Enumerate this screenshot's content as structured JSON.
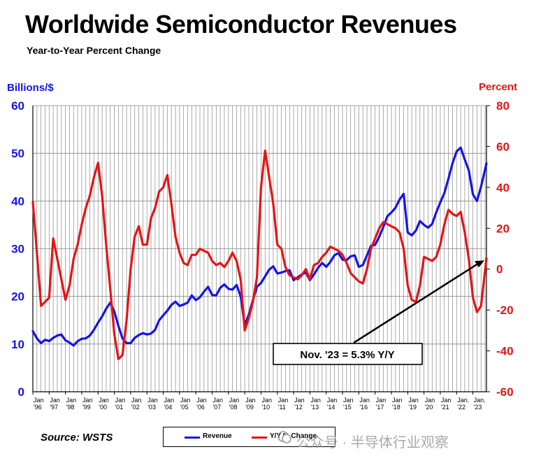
{
  "header": {
    "title": "Worldwide Semiconductor Revenues",
    "subtitle": "Year-to-Year Percent Change"
  },
  "axes": {
    "left_label": "Billions/$",
    "right_label": "Percent"
  },
  "footer": {
    "source": "Source: WSTS"
  },
  "legend": {
    "revenue": "Revenue",
    "yoy": "Y/Y % Change"
  },
  "annotation": {
    "text": "Nov. '23 = 5.3% Y/Y"
  },
  "watermark": {
    "text": "公众号 · 半导体行业观察"
  },
  "colors": {
    "revenue": "#1414e6",
    "yoy": "#e61414",
    "grid": "#888888"
  },
  "chart_data": {
    "type": "line",
    "title": "Worldwide Semiconductor Revenues",
    "subtitle": "Year-to-Year Percent Change",
    "x_start": "Jan '96",
    "x_end": "Nov '23",
    "x_tick_labels": [
      {
        "top": "Jan",
        "bottom": "'96"
      },
      {
        "top": "Jan",
        "bottom": "'97"
      },
      {
        "top": "Jan",
        "bottom": "'98"
      },
      {
        "top": "Jan",
        "bottom": "'99"
      },
      {
        "top": "Jan",
        "bottom": "'00"
      },
      {
        "top": "Jan",
        "bottom": "'01"
      },
      {
        "top": "Jan",
        "bottom": "'02"
      },
      {
        "top": "Jan",
        "bottom": "'03"
      },
      {
        "top": "Jan",
        "bottom": "'04"
      },
      {
        "top": "Jan",
        "bottom": "'05"
      },
      {
        "top": "Jan",
        "bottom": "'06"
      },
      {
        "top": "Jan",
        "bottom": "'07"
      },
      {
        "top": "Jan",
        "bottom": "'08"
      },
      {
        "top": "Jan",
        "bottom": "'09"
      },
      {
        "top": "Jan",
        "bottom": "'10"
      },
      {
        "top": "Jan",
        "bottom": "'11"
      },
      {
        "top": "Jan",
        "bottom": "'12"
      },
      {
        "top": "Jan",
        "bottom": "'13"
      },
      {
        "top": "Jan",
        "bottom": "'14"
      },
      {
        "top": "Jan",
        "bottom": "'15"
      },
      {
        "top": "Jan",
        "bottom": "'16"
      },
      {
        "top": "Jan",
        "bottom": "'17"
      },
      {
        "top": "Jan",
        "bottom": "'18"
      },
      {
        "top": "Jan",
        "bottom": "'19"
      },
      {
        "top": "Jan",
        "bottom": "'20"
      },
      {
        "top": "Jan",
        "bottom": "'21"
      },
      {
        "top": "Jan.",
        "bottom": "'22"
      },
      {
        "top": "Jan.",
        "bottom": "'23"
      }
    ],
    "y_left": {
      "label": "Billions/$",
      "min": 0,
      "max": 60,
      "ticks": [
        0,
        10,
        20,
        30,
        40,
        50,
        60
      ]
    },
    "y_right": {
      "label": "Percent",
      "min": -60,
      "max": 80,
      "ticks": [
        -60,
        -40,
        -20,
        0,
        20,
        40,
        60,
        80
      ]
    },
    "grid": true,
    "legend_position": "bottom-center",
    "series": [
      {
        "name": "Revenue",
        "axis": "left",
        "points": [
          [
            "1996-01",
            12.7
          ],
          [
            "1996-04",
            11.2
          ],
          [
            "1996-07",
            10.2
          ],
          [
            "1996-10",
            10.9
          ],
          [
            "1997-01",
            10.6
          ],
          [
            "1997-04",
            11.3
          ],
          [
            "1997-07",
            11.8
          ],
          [
            "1997-10",
            12.0
          ],
          [
            "1998-01",
            10.8
          ],
          [
            "1998-04",
            10.3
          ],
          [
            "1998-07",
            9.7
          ],
          [
            "1998-10",
            10.6
          ],
          [
            "1999-01",
            11.1
          ],
          [
            "1999-04",
            11.2
          ],
          [
            "1999-07",
            11.8
          ],
          [
            "1999-10",
            13.0
          ],
          [
            "2000-01",
            14.5
          ],
          [
            "2000-04",
            15.8
          ],
          [
            "2000-07",
            17.4
          ],
          [
            "2000-10",
            18.7
          ],
          [
            "2001-01",
            16.8
          ],
          [
            "2001-04",
            13.8
          ],
          [
            "2001-07",
            11.2
          ],
          [
            "2001-10",
            10.2
          ],
          [
            "2002-01",
            10.2
          ],
          [
            "2002-04",
            11.3
          ],
          [
            "2002-07",
            11.9
          ],
          [
            "2002-10",
            12.3
          ],
          [
            "2003-01",
            12.0
          ],
          [
            "2003-04",
            12.2
          ],
          [
            "2003-07",
            13.0
          ],
          [
            "2003-10",
            15.0
          ],
          [
            "2004-01",
            16.0
          ],
          [
            "2004-04",
            17.0
          ],
          [
            "2004-07",
            18.2
          ],
          [
            "2004-10",
            18.9
          ],
          [
            "2005-01",
            18.0
          ],
          [
            "2005-04",
            18.3
          ],
          [
            "2005-07",
            18.7
          ],
          [
            "2005-10",
            20.2
          ],
          [
            "2006-01",
            19.2
          ],
          [
            "2006-04",
            19.8
          ],
          [
            "2006-07",
            21.0
          ],
          [
            "2006-10",
            22.0
          ],
          [
            "2007-01",
            20.3
          ],
          [
            "2007-04",
            20.2
          ],
          [
            "2007-07",
            21.8
          ],
          [
            "2007-10",
            22.5
          ],
          [
            "2008-01",
            21.6
          ],
          [
            "2008-04",
            21.4
          ],
          [
            "2008-07",
            22.4
          ],
          [
            "2008-10",
            20.0
          ],
          [
            "2009-01",
            14.0
          ],
          [
            "2009-04",
            16.2
          ],
          [
            "2009-07",
            19.2
          ],
          [
            "2009-10",
            22.0
          ],
          [
            "2010-01",
            22.8
          ],
          [
            "2010-04",
            24.2
          ],
          [
            "2010-07",
            25.6
          ],
          [
            "2010-10",
            26.3
          ],
          [
            "2011-01",
            24.8
          ],
          [
            "2011-04",
            25.0
          ],
          [
            "2011-07",
            25.3
          ],
          [
            "2011-10",
            25.5
          ],
          [
            "2012-01",
            23.4
          ],
          [
            "2012-04",
            24.0
          ],
          [
            "2012-07",
            24.6
          ],
          [
            "2012-10",
            25.0
          ],
          [
            "2013-01",
            23.4
          ],
          [
            "2013-04",
            24.6
          ],
          [
            "2013-07",
            26.0
          ],
          [
            "2013-10",
            27.0
          ],
          [
            "2014-01",
            26.2
          ],
          [
            "2014-04",
            27.2
          ],
          [
            "2014-07",
            28.6
          ],
          [
            "2014-10",
            29.1
          ],
          [
            "2015-01",
            27.7
          ],
          [
            "2015-04",
            27.6
          ],
          [
            "2015-07",
            28.4
          ],
          [
            "2015-10",
            28.6
          ],
          [
            "2016-01",
            26.2
          ],
          [
            "2016-04",
            26.6
          ],
          [
            "2016-07",
            28.6
          ],
          [
            "2016-10",
            30.6
          ],
          [
            "2017-01",
            30.8
          ],
          [
            "2017-04",
            32.5
          ],
          [
            "2017-07",
            34.5
          ],
          [
            "2017-10",
            36.8
          ],
          [
            "2018-01",
            37.6
          ],
          [
            "2018-04",
            38.6
          ],
          [
            "2018-07",
            40.3
          ],
          [
            "2018-10",
            41.5
          ],
          [
            "2019-01",
            33.4
          ],
          [
            "2019-04",
            32.8
          ],
          [
            "2019-07",
            33.8
          ],
          [
            "2019-10",
            35.8
          ],
          [
            "2020-01",
            35.0
          ],
          [
            "2020-04",
            34.4
          ],
          [
            "2020-07",
            35.2
          ],
          [
            "2020-10",
            37.6
          ],
          [
            "2021-01",
            39.7
          ],
          [
            "2021-04",
            41.7
          ],
          [
            "2021-07",
            44.7
          ],
          [
            "2021-10",
            47.9
          ],
          [
            "2022-01",
            50.4
          ],
          [
            "2022-04",
            51.2
          ],
          [
            "2022-07",
            48.7
          ],
          [
            "2022-10",
            46.4
          ],
          [
            "2023-01",
            41.4
          ],
          [
            "2023-04",
            40.0
          ],
          [
            "2023-07",
            43.0
          ],
          [
            "2023-11",
            47.9
          ]
        ]
      },
      {
        "name": "Y/Y % Change",
        "axis": "right",
        "points": [
          [
            "1996-01",
            33
          ],
          [
            "1996-04",
            8
          ],
          [
            "1996-07",
            -18
          ],
          [
            "1996-10",
            -16
          ],
          [
            "1997-01",
            -14
          ],
          [
            "1997-04",
            15
          ],
          [
            "1997-07",
            5
          ],
          [
            "1997-10",
            -5
          ],
          [
            "1998-01",
            -15
          ],
          [
            "1998-04",
            -8
          ],
          [
            "1998-07",
            5
          ],
          [
            "1998-10",
            12
          ],
          [
            "1999-01",
            22
          ],
          [
            "1999-04",
            30
          ],
          [
            "1999-07",
            36
          ],
          [
            "1999-10",
            45
          ],
          [
            "2000-01",
            52
          ],
          [
            "2000-04",
            36
          ],
          [
            "2000-07",
            12
          ],
          [
            "2000-10",
            -10
          ],
          [
            "2001-01",
            -32
          ],
          [
            "2001-04",
            -44
          ],
          [
            "2001-07",
            -42
          ],
          [
            "2001-10",
            -25
          ],
          [
            "2002-01",
            0
          ],
          [
            "2002-04",
            16
          ],
          [
            "2002-07",
            21
          ],
          [
            "2002-10",
            12
          ],
          [
            "2003-01",
            12
          ],
          [
            "2003-04",
            25
          ],
          [
            "2003-07",
            30
          ],
          [
            "2003-10",
            38
          ],
          [
            "2004-01",
            40
          ],
          [
            "2004-04",
            46
          ],
          [
            "2004-07",
            32
          ],
          [
            "2004-10",
            16
          ],
          [
            "2005-01",
            8
          ],
          [
            "2005-04",
            3
          ],
          [
            "2005-07",
            2
          ],
          [
            "2005-10",
            7
          ],
          [
            "2006-01",
            7
          ],
          [
            "2006-04",
            10
          ],
          [
            "2006-07",
            9
          ],
          [
            "2006-10",
            8
          ],
          [
            "2007-01",
            4
          ],
          [
            "2007-04",
            2
          ],
          [
            "2007-07",
            3
          ],
          [
            "2007-10",
            1
          ],
          [
            "2008-01",
            4
          ],
          [
            "2008-04",
            8
          ],
          [
            "2008-07",
            4
          ],
          [
            "2008-10",
            -5
          ],
          [
            "2009-01",
            -30
          ],
          [
            "2009-04",
            -24
          ],
          [
            "2009-07",
            -16
          ],
          [
            "2009-10",
            -4
          ],
          [
            "2010-01",
            40
          ],
          [
            "2010-04",
            58
          ],
          [
            "2010-07",
            45
          ],
          [
            "2010-10",
            32
          ],
          [
            "2011-01",
            12
          ],
          [
            "2011-04",
            10
          ],
          [
            "2011-07",
            1
          ],
          [
            "2011-10",
            -3
          ],
          [
            "2012-01",
            -4
          ],
          [
            "2012-04",
            -5
          ],
          [
            "2012-07",
            -3
          ],
          [
            "2012-10",
            0
          ],
          [
            "2013-01",
            -5
          ],
          [
            "2013-04",
            2
          ],
          [
            "2013-07",
            3
          ],
          [
            "2013-10",
            6
          ],
          [
            "2014-01",
            8
          ],
          [
            "2014-04",
            11
          ],
          [
            "2014-07",
            10
          ],
          [
            "2014-10",
            9
          ],
          [
            "2015-01",
            7
          ],
          [
            "2015-04",
            3
          ],
          [
            "2015-07",
            -2
          ],
          [
            "2015-10",
            -4
          ],
          [
            "2016-01",
            -6
          ],
          [
            "2016-04",
            -7
          ],
          [
            "2016-07",
            0
          ],
          [
            "2016-10",
            10
          ],
          [
            "2017-01",
            15
          ],
          [
            "2017-04",
            20
          ],
          [
            "2017-07",
            23
          ],
          [
            "2017-10",
            22
          ],
          [
            "2018-01",
            21
          ],
          [
            "2018-04",
            20
          ],
          [
            "2018-07",
            18
          ],
          [
            "2018-10",
            10
          ],
          [
            "2019-01",
            -8
          ],
          [
            "2019-04",
            -15
          ],
          [
            "2019-07",
            -16
          ],
          [
            "2019-10",
            -8
          ],
          [
            "2020-01",
            6
          ],
          [
            "2020-04",
            5
          ],
          [
            "2020-07",
            4
          ],
          [
            "2020-10",
            6
          ],
          [
            "2021-01",
            12
          ],
          [
            "2021-04",
            22
          ],
          [
            "2021-07",
            29
          ],
          [
            "2021-10",
            27
          ],
          [
            "2022-01",
            26
          ],
          [
            "2022-04",
            28
          ],
          [
            "2022-07",
            18
          ],
          [
            "2022-10",
            5
          ],
          [
            "2023-01",
            -14
          ],
          [
            "2023-04",
            -21
          ],
          [
            "2023-07",
            -18
          ],
          [
            "2023-11",
            5.3
          ]
        ]
      }
    ],
    "annotations": [
      {
        "text": "Nov. '23 = 5.3% Y/Y",
        "points_to": [
          "2023-11",
          5.3
        ],
        "axis": "right"
      }
    ]
  }
}
